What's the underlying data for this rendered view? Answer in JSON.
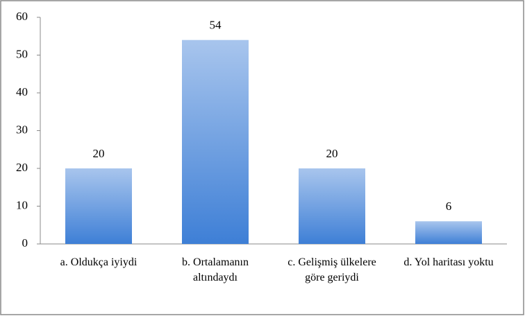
{
  "chart_data": {
    "type": "bar",
    "categories": [
      "a. Oldukça iyiydi",
      "b. Ortalamanın altındaydı",
      "c. Gelişmiş ülkelere göre geriydi",
      "d. Yol haritası yoktu"
    ],
    "values": [
      20,
      54,
      20,
      6
    ],
    "color": "#3e7fd6",
    "ylim": [
      0,
      60
    ],
    "yticks": [
      0,
      10,
      20,
      30,
      40,
      50,
      60
    ],
    "grid": false
  }
}
